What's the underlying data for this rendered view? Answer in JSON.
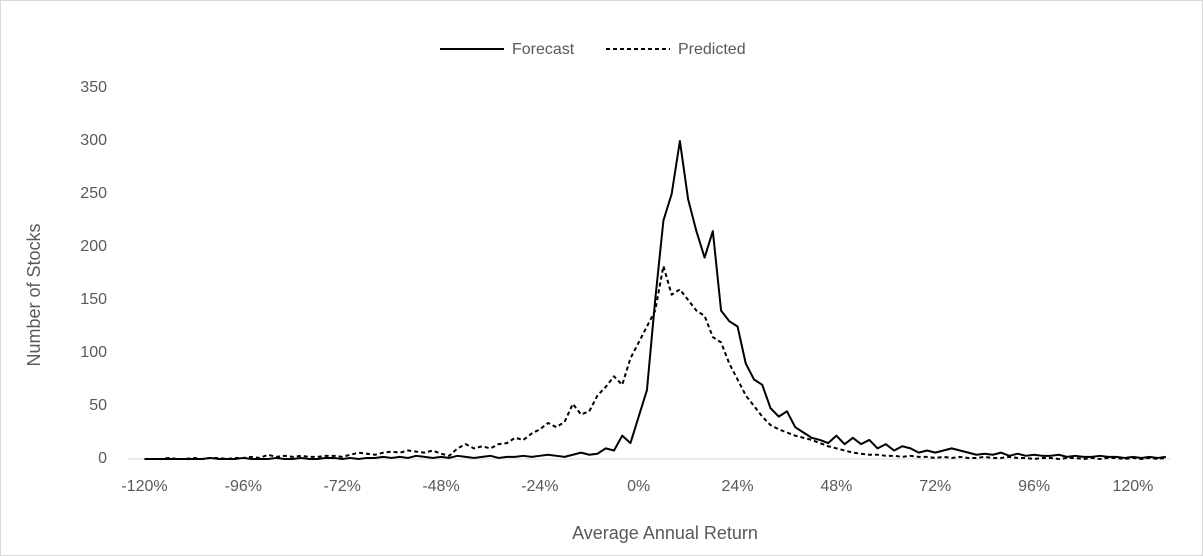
{
  "chart_data": {
    "type": "line",
    "x_label": "Average Annual Return",
    "y_label": "Number of Stocks",
    "x": [
      -120,
      -118,
      -116,
      -114,
      -112,
      -110,
      -108,
      -106,
      -104,
      -102,
      -100,
      -98,
      -96,
      -94,
      -92,
      -90,
      -88,
      -86,
      -84,
      -82,
      -80,
      -78,
      -76,
      -74,
      -72,
      -70,
      -68,
      -66,
      -64,
      -62,
      -60,
      -58,
      -56,
      -54,
      -52,
      -50,
      -48,
      -46,
      -44,
      -42,
      -40,
      -38,
      -36,
      -34,
      -32,
      -30,
      -28,
      -26,
      -24,
      -22,
      -20,
      -18,
      -16,
      -14,
      -12,
      -10,
      -8,
      -6,
      -4,
      -2,
      0,
      2,
      4,
      6,
      8,
      10,
      12,
      14,
      16,
      18,
      20,
      22,
      24,
      26,
      28,
      30,
      32,
      34,
      36,
      38,
      40,
      42,
      44,
      46,
      48,
      50,
      52,
      54,
      56,
      58,
      60,
      62,
      64,
      66,
      68,
      70,
      72,
      74,
      76,
      78,
      80,
      82,
      84,
      86,
      88,
      90,
      92,
      94,
      96,
      98,
      100,
      102,
      104,
      106,
      108,
      110,
      112,
      114,
      116,
      118,
      120,
      122,
      124,
      126,
      128
    ],
    "series": [
      {
        "name": "Forecast",
        "color": "#000000",
        "line_style": "solid",
        "values": [
          0,
          0,
          0,
          0,
          0,
          0,
          0,
          0,
          1,
          0,
          0,
          0,
          1,
          0,
          0,
          0,
          1,
          0,
          0,
          1,
          0,
          0,
          1,
          1,
          0,
          1,
          0,
          1,
          1,
          2,
          1,
          2,
          1,
          3,
          2,
          1,
          2,
          1,
          3,
          2,
          1,
          2,
          3,
          1,
          2,
          2,
          3,
          2,
          3,
          4,
          3,
          2,
          4,
          6,
          4,
          5,
          10,
          8,
          22,
          15,
          40,
          65,
          150,
          225,
          250,
          300,
          245,
          215,
          190,
          215,
          140,
          130,
          125,
          90,
          75,
          70,
          48,
          40,
          45,
          30,
          25,
          20,
          18,
          15,
          22,
          14,
          20,
          14,
          18,
          10,
          14,
          8,
          12,
          10,
          6,
          8,
          6,
          8,
          10,
          8,
          6,
          4,
          5,
          4,
          6,
          3,
          5,
          3,
          4,
          3,
          3,
          4,
          2,
          3,
          2,
          2,
          3,
          2,
          2,
          1,
          2,
          1,
          2,
          1,
          2
        ]
      },
      {
        "name": "Predicted",
        "color": "#000000",
        "line_style": "dashed",
        "values": [
          0,
          0,
          0,
          1,
          0,
          0,
          1,
          0,
          1,
          1,
          0,
          1,
          1,
          2,
          1,
          4,
          2,
          3,
          2,
          3,
          2,
          2,
          3,
          3,
          2,
          4,
          6,
          5,
          4,
          6,
          7,
          6,
          8,
          7,
          6,
          8,
          5,
          3,
          10,
          14,
          10,
          12,
          10,
          14,
          15,
          20,
          18,
          24,
          28,
          34,
          30,
          35,
          52,
          42,
          45,
          60,
          68,
          78,
          70,
          95,
          110,
          125,
          140,
          182,
          155,
          160,
          150,
          140,
          135,
          115,
          110,
          90,
          75,
          60,
          50,
          40,
          32,
          28,
          25,
          22,
          20,
          18,
          15,
          12,
          10,
          8,
          6,
          5,
          4,
          4,
          3,
          3,
          2,
          3,
          2,
          2,
          1,
          2,
          1,
          2,
          1,
          1,
          2,
          1,
          1,
          2,
          1,
          1,
          0,
          1,
          1,
          0,
          1,
          1,
          0,
          1,
          0,
          1,
          1,
          0,
          1,
          0,
          1,
          0,
          1
        ]
      }
    ],
    "xlim": [
      -124,
      129
    ],
    "ylim": [
      0,
      350
    ],
    "xticks": [
      {
        "value": -120,
        "label": "-120%"
      },
      {
        "value": -96,
        "label": "-96%"
      },
      {
        "value": -72,
        "label": "-72%"
      },
      {
        "value": -48,
        "label": "-48%"
      },
      {
        "value": -24,
        "label": "-24%"
      },
      {
        "value": 0,
        "label": "0%"
      },
      {
        "value": 24,
        "label": "24%"
      },
      {
        "value": 48,
        "label": "48%"
      },
      {
        "value": 72,
        "label": "72%"
      },
      {
        "value": 96,
        "label": "96%"
      },
      {
        "value": 120,
        "label": "120%"
      }
    ],
    "yticks": [
      0,
      50,
      100,
      150,
      200,
      250,
      300,
      350
    ],
    "grid": false,
    "legend": "top"
  }
}
